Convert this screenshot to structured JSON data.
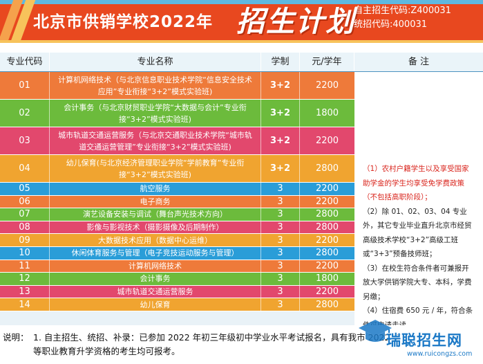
{
  "header": {
    "title": "北京市供销学校2022年",
    "title_big": "招生计划",
    "self_code": "自主招生代码:Z400031",
    "unified_code": "统招代码:400031"
  },
  "colors": {
    "header_bg": "#e8481f",
    "row_orange": "#ee7a3a",
    "row_green": "#6cbb3c",
    "row_pink": "#e2486d",
    "row_gold": "#f0a430",
    "row_blue": "#2a9dd8",
    "remark_red": "#d9241c"
  },
  "table": {
    "headers": {
      "code": "专业代码",
      "name": "专业名称",
      "duration": "学制",
      "fee": "元/学年",
      "remarks": "备  注"
    },
    "rows": [
      {
        "code": "01",
        "name": "计算机网络技术（与北京信息职业技术学院“信息安全技术应用”专业衔接“3+2”模式实验班)",
        "duration": "3+2",
        "fee": "2200",
        "color": "orange"
      },
      {
        "code": "02",
        "name": "会计事务（与北京财贸职业学院“大数据与会计”专业衔接“3+2”模式实验班)",
        "duration": "3+2",
        "fee": "1800",
        "color": "green"
      },
      {
        "code": "03",
        "name": "城市轨道交通运营服务（与北京交通职业技术学院“城市轨道交通运营管理”专业衔接“3+2”模式实验班)",
        "duration": "3+2",
        "fee": "2200",
        "color": "pink"
      },
      {
        "code": "04",
        "name": "幼儿保育(与北京经济管理职业学院“学前教育”专业衔接“3+2”模式实验班)",
        "duration": "3+2",
        "fee": "2800",
        "color": "gold"
      },
      {
        "code": "05",
        "name": "航空服务",
        "duration": "3",
        "fee": "2200",
        "color": "blue"
      },
      {
        "code": "06",
        "name": "电子商务",
        "duration": "3",
        "fee": "2200",
        "color": "orange"
      },
      {
        "code": "07",
        "name": "演艺设备安装与调试（舞台声光技术方向）",
        "duration": "3",
        "fee": "2800",
        "color": "green"
      },
      {
        "code": "08",
        "name": "影像与影视技术（摄影摄像及后期制作）",
        "duration": "3",
        "fee": "2800",
        "color": "pink"
      },
      {
        "code": "09",
        "name": "大数据技术应用（数据中心运维）",
        "duration": "3",
        "fee": "2200",
        "color": "gold"
      },
      {
        "code": "10",
        "name": "休闲体育服务与管理（电子竞技运动服务与管理）",
        "duration": "3",
        "fee": "2800",
        "color": "blue"
      },
      {
        "code": "11",
        "name": "计算机网络技术",
        "duration": "3",
        "fee": "2200",
        "color": "orange"
      },
      {
        "code": "12",
        "name": "会计事务",
        "duration": "3",
        "fee": "1800",
        "color": "green"
      },
      {
        "code": "13",
        "name": "城市轨道交通运营服务",
        "duration": "3",
        "fee": "2200",
        "color": "pink"
      },
      {
        "code": "14",
        "name": "幼儿保育",
        "duration": "3",
        "fee": "2800",
        "color": "gold"
      }
    ],
    "remarks": [
      "（1）农村户籍学生以及享受国家助学金的学生均享受免学费政策（不包括高职阶段）；",
      "（2）除 01、02、03、04 专业外，其它专业毕业直升北京市经贸高级技术学校“3+2”高级工班或“3+3”预备技师班；",
      "（3）在校生符合条件者可兼报开放大学供销学院大专、本科，学费另缴；",
      "（4）住宿费 650 元 / 年，符合条件可申请走读。"
    ]
  },
  "footer": {
    "note_label": "说明：",
    "note_text": "1. 自主招生、统招、补录：已参加 2022 年初三年级初中学业水平考试报名，具有我市 2022 年中等职业教育升学资格的考生均可报考。"
  },
  "watermark": {
    "name": "瑞聪招生网",
    "url": "www.ruicongzs.com",
    "icon": "graduation-cap-icon"
  }
}
